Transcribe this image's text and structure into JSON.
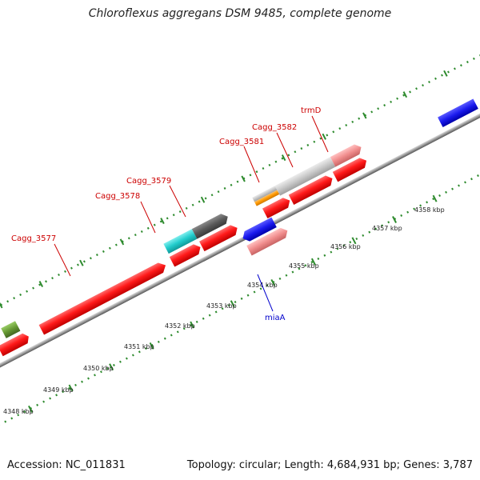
{
  "title": "Chloroflexus aggregans DSM 9485, complete genome",
  "footer": {
    "accession": "Accession: NC_011831",
    "summary": "Topology: circular; Length: 4,684,931 bp; Genes: 3,787"
  },
  "colors": {
    "forward_track_dots": "#2e8b2e",
    "reverse_track_dots": "#2e8b2e",
    "backbone": "#888888",
    "red": "#ff1a1a",
    "pink": "#f08c8c",
    "blue": "#1a1aee",
    "cyan": "#22cccc",
    "dark_gray": "#5a5a5a",
    "light_gray": "#c8c8c8",
    "orange": "#ff9900",
    "olive": "#669933",
    "label_red": "#cc0000",
    "label_blue": "#0000cc"
  },
  "scale_ticks": [
    {
      "label": "4348 kbp"
    },
    {
      "label": "4349 kbp"
    },
    {
      "label": "4350 kbp"
    },
    {
      "label": "4351 kbp"
    },
    {
      "label": "4352 kbp"
    },
    {
      "label": "4353 kbp"
    },
    {
      "label": "4354 kbp"
    },
    {
      "label": "4355 kbp"
    },
    {
      "label": "4356 kbp"
    },
    {
      "label": "4357 kbp"
    },
    {
      "label": "4358 kbp"
    }
  ],
  "genes": [
    {
      "name": "Cagg_3577",
      "color": "red",
      "strand": "forward",
      "label_color": "label_red"
    },
    {
      "name": "Cagg_3578",
      "color": "red",
      "strand": "forward",
      "label_color": "label_red"
    },
    {
      "name": "Cagg_3579",
      "color": "cyan",
      "strand": "forward",
      "label_color": "label_red"
    },
    {
      "name": "Cagg_3581",
      "color": "orange",
      "strand": "forward",
      "label_color": "label_red"
    },
    {
      "name": "Cagg_3582",
      "color": "light_gray",
      "strand": "forward",
      "label_color": "label_red"
    },
    {
      "name": "trmD",
      "color": "pink",
      "strand": "forward",
      "label_color": "label_red"
    },
    {
      "name": "miaA",
      "color": "pink",
      "strand": "forward",
      "label_color": "label_blue"
    }
  ]
}
